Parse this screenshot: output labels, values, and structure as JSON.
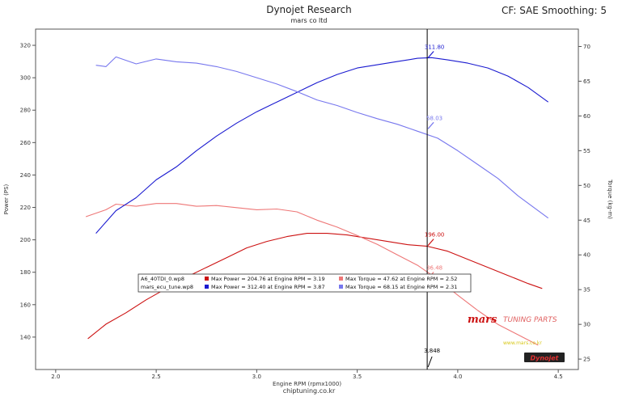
{
  "header": {
    "title": "Dynojet Research",
    "subtitle": "mars co ltd",
    "settings": "CF: SAE Smoothing: 5",
    "footer": "chiptuning.co.kr"
  },
  "chart_data": {
    "type": "line",
    "xlabel": "Engine RPM (rpmx1000)",
    "ylabel_left": "Power (PS)",
    "ylabel_right": "Torque (kg-m)",
    "xlim": [
      1.9,
      4.6
    ],
    "ylim_left": [
      120,
      330
    ],
    "ylim_right": [
      23.5,
      72.5
    ],
    "x_ticks": [
      2.0,
      2.5,
      3.0,
      3.5,
      4.0,
      4.5
    ],
    "y_ticks_left": [
      140,
      160,
      180,
      200,
      220,
      240,
      260,
      280,
      300,
      320
    ],
    "y_ticks_right": [
      25,
      30,
      35,
      40,
      45,
      50,
      55,
      60,
      65,
      70
    ],
    "grid": false,
    "colors": {
      "red_power": "#cc1111",
      "red_torque": "#ee7777",
      "blue_power": "#1a1ad0",
      "blue_torque": "#7777ee",
      "marker_line": "#000000"
    },
    "series": [
      {
        "name": "Max Power",
        "file": "A6_40TDI_0.wp8",
        "axis": "left",
        "color_key": "red_power",
        "x": [
          2.16,
          2.25,
          2.35,
          2.45,
          2.55,
          2.65,
          2.75,
          2.85,
          2.95,
          3.05,
          3.15,
          3.25,
          3.35,
          3.45,
          3.55,
          3.65,
          3.75,
          3.85,
          3.95,
          4.05,
          4.15,
          4.25,
          4.35,
          4.42
        ],
        "values": [
          139,
          148,
          155,
          163,
          170,
          177,
          183,
          189,
          195,
          199,
          202,
          204,
          204,
          203,
          201,
          199,
          197,
          196,
          193,
          188,
          183,
          178,
          173,
          170
        ]
      },
      {
        "name": "Max Torque",
        "file": "A6_40TDI_0.wp8",
        "axis": "right",
        "color_key": "red_torque",
        "x": [
          2.15,
          2.25,
          2.3,
          2.4,
          2.5,
          2.6,
          2.7,
          2.8,
          2.9,
          3.0,
          3.1,
          3.2,
          3.3,
          3.4,
          3.5,
          3.6,
          3.7,
          3.8,
          3.9,
          4.0,
          4.1,
          4.2,
          4.3,
          4.4
        ],
        "values": [
          45.5,
          46.5,
          47.3,
          47.0,
          47.4,
          47.4,
          47.0,
          47.1,
          46.8,
          46.5,
          46.6,
          46.2,
          45.0,
          44.0,
          42.8,
          41.5,
          40.0,
          38.5,
          36.5,
          34.2,
          32.0,
          30.0,
          28.5,
          27.0
        ]
      },
      {
        "name": "Max Power",
        "file": "mars_ecu_tune.wp8",
        "axis": "left",
        "color_key": "blue_power",
        "x": [
          2.2,
          2.3,
          2.4,
          2.5,
          2.6,
          2.7,
          2.8,
          2.9,
          3.0,
          3.1,
          3.2,
          3.3,
          3.4,
          3.5,
          3.6,
          3.7,
          3.8,
          3.87,
          3.95,
          4.05,
          4.15,
          4.25,
          4.35,
          4.45
        ],
        "values": [
          204,
          218,
          226,
          237,
          245,
          255,
          264,
          272,
          279,
          285,
          291,
          297,
          302,
          306,
          308,
          310,
          312,
          312.4,
          311,
          309,
          306,
          301,
          294,
          285
        ]
      },
      {
        "name": "Max Torque",
        "file": "mars_ecu_tune.wp8",
        "axis": "right",
        "color_key": "blue_torque",
        "x": [
          2.2,
          2.25,
          2.3,
          2.4,
          2.5,
          2.6,
          2.7,
          2.8,
          2.9,
          3.0,
          3.1,
          3.2,
          3.3,
          3.4,
          3.5,
          3.6,
          3.7,
          3.8,
          3.9,
          4.0,
          4.1,
          4.2,
          4.3,
          4.45
        ],
        "values": [
          67.3,
          67.1,
          68.5,
          67.5,
          68.2,
          67.8,
          67.6,
          67.1,
          66.4,
          65.5,
          64.6,
          63.5,
          62.3,
          61.5,
          60.5,
          59.6,
          58.8,
          57.8,
          56.8,
          55.0,
          53.0,
          51.0,
          48.5,
          45.3
        ]
      }
    ],
    "marker": {
      "x": 3.848,
      "label": "3.848",
      "readouts": [
        {
          "text": "311.80",
          "series_index": 2,
          "value": 311.8,
          "color_key": "blue_power"
        },
        {
          "text": "58.03",
          "series_index": 3,
          "value": 58.03,
          "color_key": "blue_torque"
        },
        {
          "text": "196.00",
          "series_index": 0,
          "value": 196.0,
          "color_key": "red_power"
        },
        {
          "text": "36.48",
          "series_index": 1,
          "value": 36.48,
          "color_key": "red_torque"
        }
      ]
    },
    "legend": {
      "placement": "lower-center",
      "rows": [
        {
          "file": "A6_40TDI_0.wp8",
          "power": "Max Power = 204.76 at Engine RPM = 3.19",
          "torque": "Max Torque = 47.62 at Engine RPM = 2.52",
          "power_color_key": "red_power",
          "torque_color_key": "red_torque"
        },
        {
          "file": "mars_ecu_tune.wp8",
          "power": "Max Power = 312.40 at Engine RPM = 3.87",
          "torque": "Max Torque = 68.15 at Engine RPM = 2.31",
          "power_color_key": "blue_power",
          "torque_color_key": "blue_torque"
        }
      ]
    },
    "watermarks": {
      "brand": "TUNING PARTS",
      "brand_logo": "mars",
      "url": "www.mars.co.kr",
      "badge": "Dynojet"
    }
  }
}
